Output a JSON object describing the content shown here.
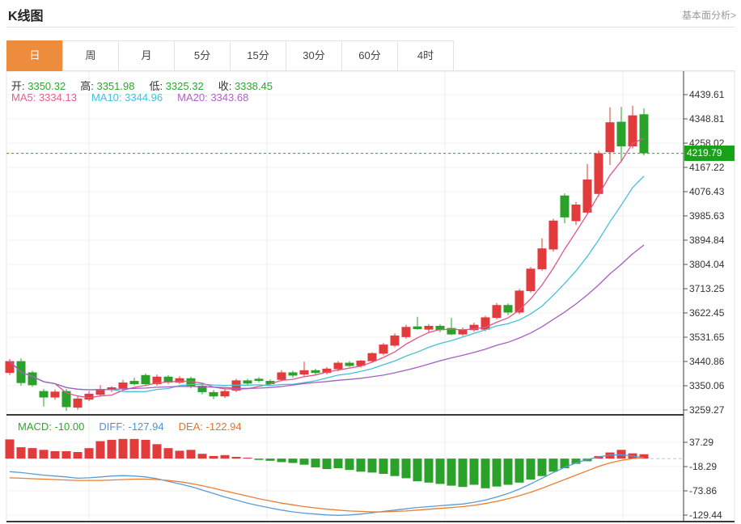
{
  "header": {
    "title": "K线图",
    "link": "基本面分析>"
  },
  "tabs": {
    "items": [
      "日",
      "周",
      "月",
      "5分",
      "15分",
      "30分",
      "60分",
      "4时"
    ],
    "selected_index": 0
  },
  "info": {
    "ohlc": [
      {
        "label": "开:",
        "value": "3350.32"
      },
      {
        "label": "高:",
        "value": "3351.98"
      },
      {
        "label": "低:",
        "value": "3325.32"
      },
      {
        "label": "收:",
        "value": "3338.45"
      }
    ],
    "ohlc_value_color": "#2EA52E",
    "ma": [
      {
        "label": "MA5:",
        "value": "3334.13",
        "color": "#E2608E"
      },
      {
        "label": "MA10:",
        "value": "3344.96",
        "color": "#3FC1DD"
      },
      {
        "label": "MA20:",
        "value": "3343.68",
        "color": "#B05FC9"
      }
    ],
    "macd": [
      {
        "label": "MACD:",
        "value": "-10.00",
        "color": "#2EA52E"
      },
      {
        "label": "DIFF:",
        "value": "-127.94",
        "color": "#4B93D9"
      },
      {
        "label": "DEA:",
        "value": "-122.94",
        "color": "#E8732C"
      }
    ]
  },
  "colors": {
    "up": "#E23B3B",
    "down": "#2AA22A",
    "tag_bg": "#17A317",
    "accent": "#EE8C3D",
    "ma5": "#E0558A",
    "ma10": "#45BFD8",
    "ma20": "#A55FBF",
    "diff_line": "#5B9BD5",
    "dea_line": "#ED7D31",
    "grid": "#F0F0F0",
    "vgrid": "#ECECEC",
    "axis": "#3A3A3A",
    "border": "#E4E4E4",
    "dashed_price": "#2EA52E",
    "dashed_zero": "#A8CCE8"
  },
  "chart_data": {
    "type": "candlestick+macd",
    "legend_position": "top-left",
    "grid": true,
    "main": {
      "current_price": "4219.79",
      "y_ticks": [
        "4439.61",
        "4348.81",
        "4258.02",
        "4167.22",
        "4076.43",
        "3985.63",
        "3894.84",
        "3804.04",
        "3713.25",
        "3622.45",
        "3531.65",
        "3440.86",
        "3350.06",
        "3259.27"
      ],
      "candles": [
        [
          3398,
          3450,
          3390,
          3442
        ],
        [
          3442,
          3452,
          3350,
          3360
        ],
        [
          3400,
          3406,
          3346,
          3352
        ],
        [
          3330,
          3338,
          3272,
          3306
        ],
        [
          3306,
          3336,
          3298,
          3328
        ],
        [
          3330,
          3338,
          3256,
          3270
        ],
        [
          3268,
          3310,
          3260,
          3302
        ],
        [
          3298,
          3330,
          3292,
          3320
        ],
        [
          3316,
          3352,
          3310,
          3338
        ],
        [
          3334,
          3348,
          3326,
          3344
        ],
        [
          3340,
          3372,
          3334,
          3362
        ],
        [
          3368,
          3380,
          3352,
          3356
        ],
        [
          3390,
          3396,
          3352,
          3356
        ],
        [
          3356,
          3392,
          3350,
          3384
        ],
        [
          3384,
          3390,
          3356,
          3362
        ],
        [
          3362,
          3386,
          3356,
          3378
        ],
        [
          3378,
          3384,
          3340,
          3348
        ],
        [
          3350,
          3356,
          3318,
          3326
        ],
        [
          3326,
          3334,
          3300,
          3310
        ],
        [
          3310,
          3338,
          3304,
          3330
        ],
        [
          3332,
          3376,
          3326,
          3370
        ],
        [
          3370,
          3376,
          3350,
          3358
        ],
        [
          3376,
          3382,
          3362,
          3368
        ],
        [
          3368,
          3374,
          3350,
          3356
        ],
        [
          3372,
          3408,
          3366,
          3400
        ],
        [
          3400,
          3406,
          3380,
          3388
        ],
        [
          3392,
          3440,
          3386,
          3408
        ],
        [
          3408,
          3414,
          3390,
          3398
        ],
        [
          3398,
          3420,
          3392,
          3414
        ],
        [
          3412,
          3442,
          3404,
          3436
        ],
        [
          3436,
          3442,
          3420,
          3424
        ],
        [
          3424,
          3446,
          3418,
          3444
        ],
        [
          3442,
          3475,
          3436,
          3472
        ],
        [
          3470,
          3510,
          3464,
          3504
        ],
        [
          3500,
          3546,
          3494,
          3538
        ],
        [
          3532,
          3578,
          3526,
          3570
        ],
        [
          3572,
          3608,
          3560,
          3562
        ],
        [
          3560,
          3580,
          3548,
          3574
        ],
        [
          3574,
          3580,
          3550,
          3558
        ],
        [
          3566,
          3604,
          3540,
          3542
        ],
        [
          3542,
          3568,
          3536,
          3560
        ],
        [
          3558,
          3586,
          3552,
          3578
        ],
        [
          3560,
          3612,
          3554,
          3606
        ],
        [
          3604,
          3660,
          3598,
          3652
        ],
        [
          3652,
          3658,
          3614,
          3624
        ],
        [
          3624,
          3712,
          3618,
          3706
        ],
        [
          3704,
          3794,
          3698,
          3788
        ],
        [
          3786,
          3902,
          3780,
          3864
        ],
        [
          3860,
          3975,
          3852,
          3968
        ],
        [
          4062,
          4070,
          3958,
          3980
        ],
        [
          3966,
          4038,
          3952,
          4028
        ],
        [
          3998,
          4180,
          3990,
          4122
        ],
        [
          4068,
          4230,
          4058,
          4220
        ],
        [
          4224,
          4392,
          4176,
          4336
        ],
        [
          4338,
          4394,
          4186,
          4246
        ],
        [
          4246,
          4398,
          4238,
          4362
        ],
        [
          4366,
          4388,
          4212,
          4220
        ]
      ],
      "ma_periods": [
        5,
        10,
        20
      ]
    },
    "macd": {
      "y_ticks": [
        "37.29",
        "-18.29",
        "-73.86",
        "-129.44"
      ],
      "histogram": [
        44,
        26,
        24,
        20,
        17,
        17,
        15,
        24,
        40,
        43,
        45,
        45,
        43,
        33,
        24,
        18,
        20,
        11,
        6,
        8,
        4,
        2,
        -3,
        -5,
        -8,
        -10,
        -14,
        -20,
        -24,
        -22,
        -26,
        -30,
        -32,
        -35,
        -40,
        -45,
        -52,
        -55,
        -58,
        -62,
        -65,
        -60,
        -68,
        -64,
        -60,
        -55,
        -48,
        -40,
        -30,
        -22,
        -12,
        -6,
        6,
        14,
        20,
        12,
        10
      ],
      "diff": [
        -30,
        -32,
        -35,
        -38,
        -40,
        -42,
        -45,
        -44,
        -42,
        -40,
        -39,
        -40,
        -42,
        -46,
        -52,
        -58,
        -64,
        -72,
        -80,
        -88,
        -95,
        -102,
        -108,
        -113,
        -118,
        -122,
        -125,
        -127,
        -129,
        -130,
        -129,
        -127,
        -124,
        -121,
        -118,
        -115,
        -112,
        -110,
        -108,
        -106,
        -104,
        -100,
        -95,
        -88,
        -80,
        -70,
        -58,
        -45,
        -32,
        -20,
        -10,
        -2,
        4,
        8,
        9,
        6,
        2
      ],
      "dea": [
        -44,
        -45,
        -46,
        -47,
        -48,
        -49,
        -50,
        -50,
        -50,
        -49,
        -48,
        -47,
        -47,
        -48,
        -50,
        -53,
        -57,
        -62,
        -68,
        -74,
        -80,
        -86,
        -92,
        -97,
        -102,
        -106,
        -110,
        -113,
        -116,
        -118,
        -120,
        -121,
        -122,
        -122,
        -121,
        -120,
        -118,
        -116,
        -114,
        -112,
        -110,
        -107,
        -103,
        -98,
        -92,
        -85,
        -77,
        -68,
        -58,
        -48,
        -38,
        -28,
        -18,
        -10,
        -4,
        0,
        2
      ]
    }
  }
}
